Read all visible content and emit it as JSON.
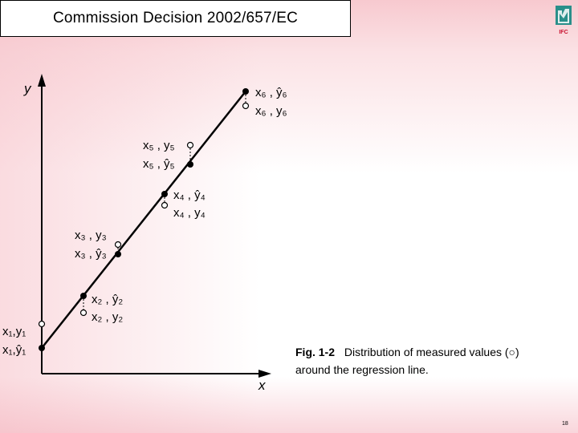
{
  "header": {
    "title": "Commission Decision 2002/657/EC",
    "logo_text": "IFC"
  },
  "figure": {
    "axis_y": "y",
    "axis_x": "x",
    "caption_label": "Fig. 1-2",
    "caption_line1": "Distribution of measured values (○)",
    "caption_line2": "around the regression line.",
    "points": [
      {
        "id": "1",
        "measured": "x₁,y₁",
        "fitted": "x₁,ŷ₁"
      },
      {
        "id": "2",
        "fitted": "x₂ , ŷ₂",
        "measured": "x₂ , y₂"
      },
      {
        "id": "3",
        "measured": "x₃ , y₃",
        "fitted": "x₃ , ŷ₃"
      },
      {
        "id": "4",
        "fitted": "x₄ , ŷ₄",
        "measured": "x₄ , y₄"
      },
      {
        "id": "5",
        "measured": "x₅ , y₅",
        "fitted": "x₅ , ŷ₅"
      },
      {
        "id": "6",
        "fitted": "x₆ , ŷ₆",
        "measured": "x₆ , y₆"
      }
    ]
  },
  "footer": {
    "page_number": "18"
  },
  "colors": {
    "accent": "#f4b4be",
    "logo": "#2a8f8a"
  }
}
